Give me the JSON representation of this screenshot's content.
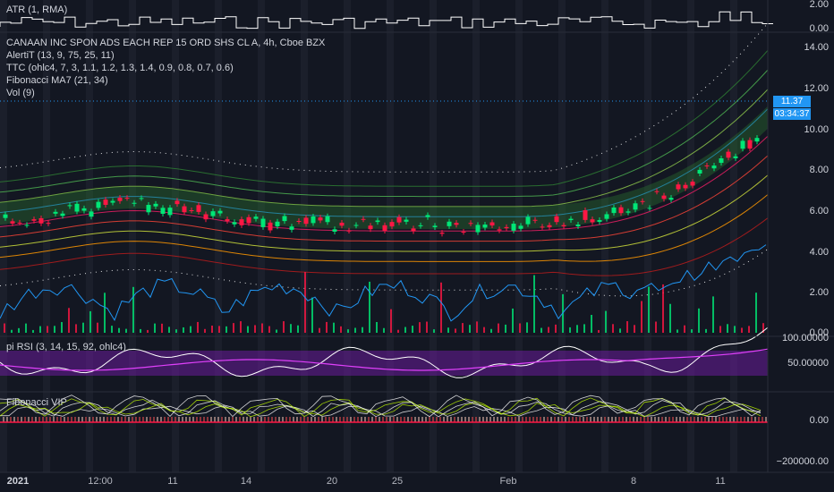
{
  "panes": {
    "atr": {
      "label": "ATR (1, RMA)",
      "axis": [
        "2.00",
        "0.00"
      ]
    },
    "main": {
      "title": "CANAAN INC SPON ADS EACH REP 15 ORD SHS CL A, 4h, Cboe BZX",
      "studies": [
        "AlertiT (13, 9, 75, 25, 11)",
        "TTC (ohlc4, 7, 3, 1.1, 1.2, 1.3, 1.4, 0.9, 0.8, 0.7, 0.6)",
        "Fibonacci MA7 (21, 34)",
        "Vol (9)"
      ],
      "axis": [
        "14.00",
        "12.00",
        "10.00",
        "8.00",
        "6.00",
        "4.00",
        "2.00",
        "0.00"
      ],
      "price_tag": "11.37",
      "countdown_tag": "03:34:37"
    },
    "rsi": {
      "label": "pi RSI (3, 14, 15, 92, ohlc4)",
      "axis": [
        "100.00000",
        "50.00000"
      ]
    },
    "vip": {
      "label": "Fibonacci VIP",
      "axis": [
        "0.00",
        "−200000.00"
      ]
    }
  },
  "time_axis": [
    "2021",
    "12:00",
    "11",
    "14",
    "20",
    "25",
    "Feb",
    "8",
    "11"
  ],
  "colors": {
    "background": "#131722",
    "up": "#00e676",
    "down": "#ff1744",
    "accent": "#2196f3",
    "rsi_band": "#6a1b9a"
  }
}
